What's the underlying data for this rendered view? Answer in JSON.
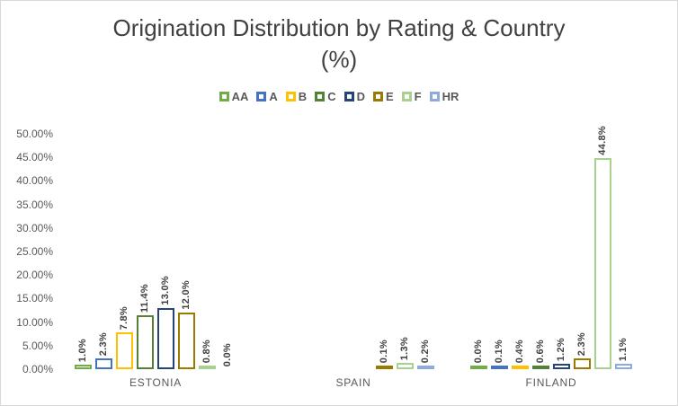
{
  "header": {
    "title_line1": "Origination Distribution by Rating & Country",
    "title_line2": "(%)"
  },
  "chart_data": {
    "type": "bar",
    "title": "Origination Distribution by Rating & Country (%)",
    "xlabel": "",
    "ylabel": "",
    "ylim": [
      0,
      50
    ],
    "grid": false,
    "legend_position": "top-center",
    "bar_style": "hollow-outline",
    "y_ticks": [
      "50.00%",
      "45.00%",
      "40.00%",
      "35.00%",
      "30.00%",
      "25.00%",
      "20.00%",
      "15.00%",
      "10.00%",
      "5.00%",
      "0.00%"
    ],
    "categories": [
      "ESTONIA",
      "SPAIN",
      "FINLAND"
    ],
    "ratings": [
      "AA",
      "A",
      "B",
      "C",
      "D",
      "E",
      "F",
      "HR"
    ],
    "colors": {
      "AA": "#70AD47",
      "A": "#4472C4",
      "B": "#FFC000",
      "C": "#548235",
      "D": "#264478",
      "E": "#9C7A00",
      "F": "#A9D18E",
      "HR": "#8FAADC"
    },
    "series": [
      {
        "name": "AA",
        "values": [
          1.0,
          null,
          0.0
        ],
        "labels": [
          "1.0%",
          null,
          "0.0%"
        ]
      },
      {
        "name": "A",
        "values": [
          2.3,
          null,
          0.1
        ],
        "labels": [
          "2.3%",
          null,
          "0.1%"
        ]
      },
      {
        "name": "B",
        "values": [
          7.8,
          null,
          0.4
        ],
        "labels": [
          "7.8%",
          null,
          "0.4%"
        ]
      },
      {
        "name": "C",
        "values": [
          11.4,
          null,
          0.6
        ],
        "labels": [
          "11.4%",
          null,
          "0.6%"
        ]
      },
      {
        "name": "D",
        "values": [
          13.0,
          null,
          1.2
        ],
        "labels": [
          "13.0%",
          null,
          "1.2%"
        ]
      },
      {
        "name": "E",
        "values": [
          12.0,
          0.1,
          2.3
        ],
        "labels": [
          "12.0%",
          "0.1%",
          "2.3%"
        ]
      },
      {
        "name": "F",
        "values": [
          0.8,
          1.3,
          44.8
        ],
        "labels": [
          "0.8%",
          "1.3%",
          "44.8%"
        ]
      },
      {
        "name": "HR",
        "values": [
          0.0,
          0.2,
          1.1
        ],
        "labels": [
          "0.0%",
          "0.2%",
          "1.1%"
        ],
        "no_bar": [
          true,
          false,
          false
        ]
      }
    ]
  },
  "style_colors": {
    "title_text": "#404040",
    "axis_text": "#595959",
    "data_label_text": "#404040",
    "chart_border": "#D9D9D9",
    "background": "#FFFFFF"
  }
}
